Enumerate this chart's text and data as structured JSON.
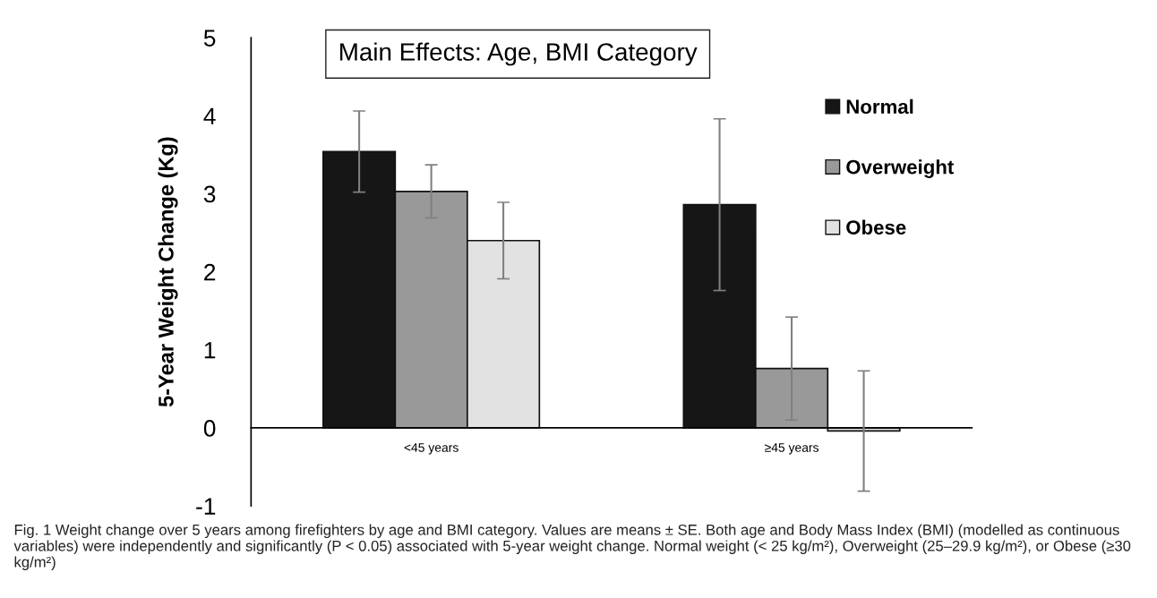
{
  "chart_data": {
    "type": "bar",
    "title": "Main Effects: Age, BMI Category",
    "ylabel": "5-Year Weight Change (Kg)",
    "categories": [
      "<45 years",
      "≥45 years"
    ],
    "series": [
      {
        "name": "Normal",
        "color": "#161616",
        "values": [
          3.54,
          2.86
        ],
        "errors": [
          0.52,
          1.1
        ]
      },
      {
        "name": "Overweight",
        "color": "#999999",
        "values": [
          3.03,
          0.76
        ],
        "errors": [
          0.34,
          0.66
        ]
      },
      {
        "name": "Obese",
        "color": "#e2e2e2",
        "values": [
          2.4,
          -0.04
        ],
        "errors": [
          0.49,
          0.77
        ]
      }
    ],
    "ylim": [
      -1,
      5
    ],
    "yticks": [
      -1,
      0,
      1,
      2,
      3,
      4,
      5
    ],
    "grid": false,
    "legend": "right",
    "annotations": [
      "Fig. 1 Weight change over 5 years among firefighters by age and BMI category. Values are means ± SE. Both age and Body Mass Index (BMI) (modelled as continuous variables) were independently and significantly (P < 0.05) associated with 5-year weight change. Normal weight (< 25 kg/m²), Overweight (25–29.9 kg/m²), or Obese (≥30 kg/m²)"
    ]
  }
}
